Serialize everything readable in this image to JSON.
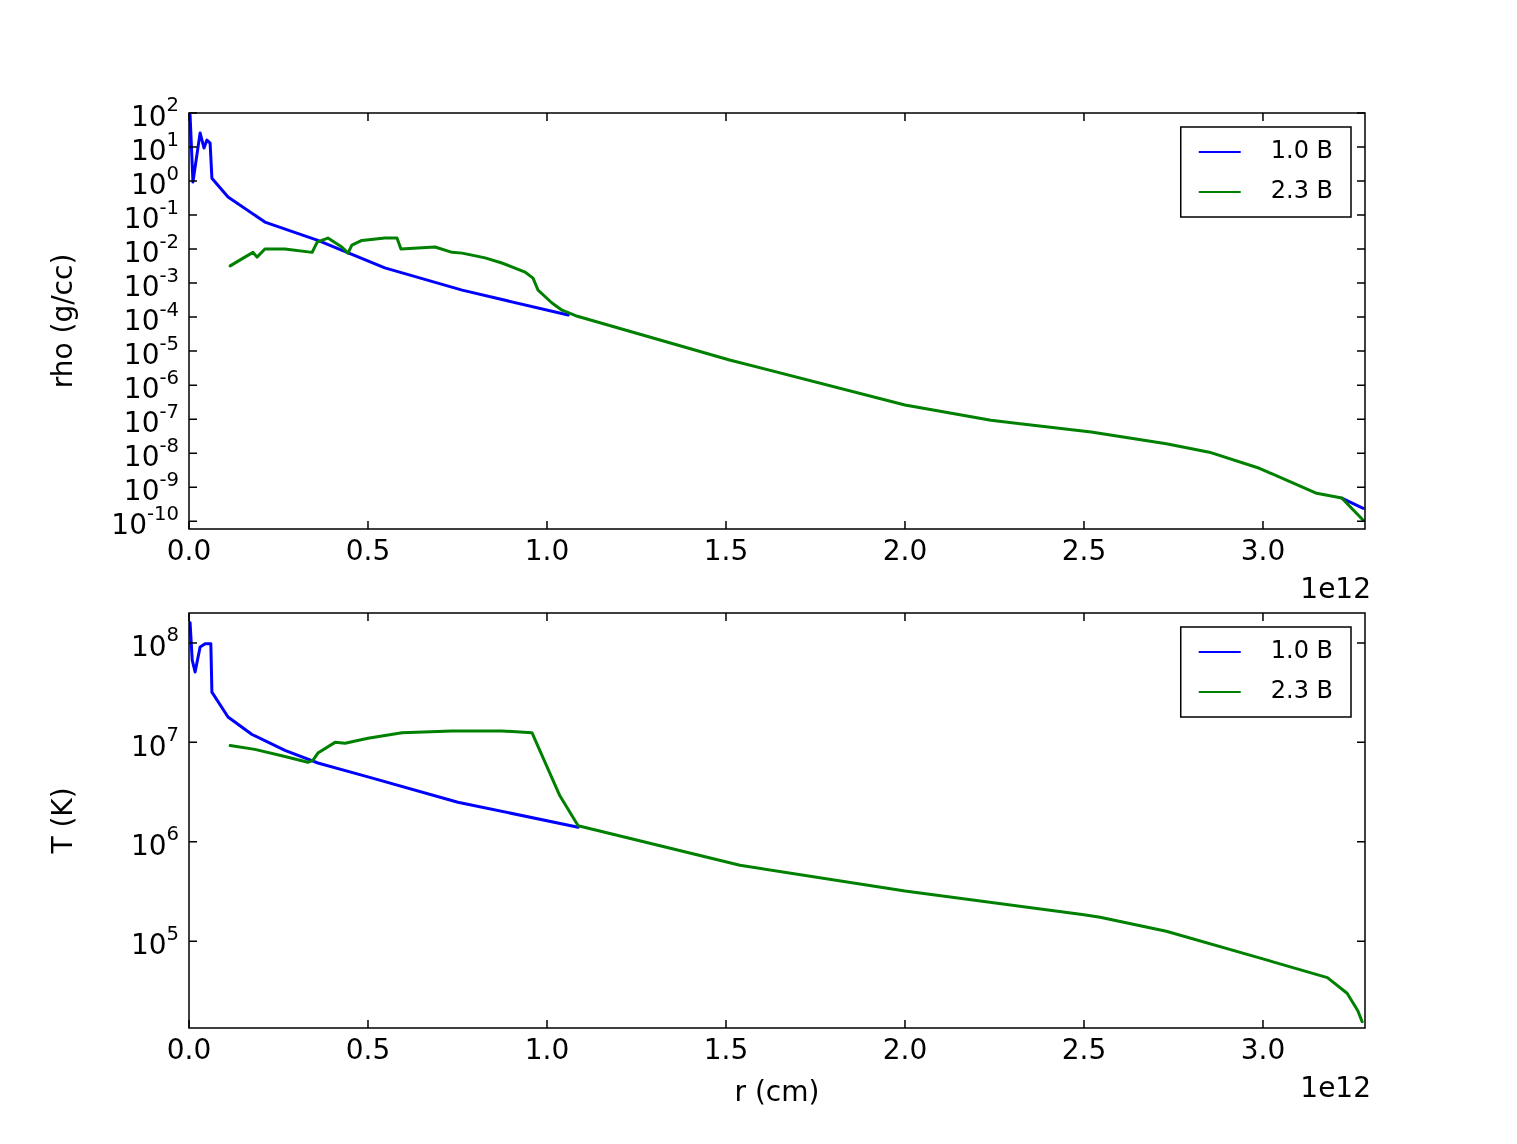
{
  "chart_data": [
    {
      "type": "line",
      "ylabel": "rho (g/cc)",
      "annotations": [
        "1e12"
      ],
      "log": "y",
      "legend": "top right",
      "xlim": [
        0,
        3.285
      ],
      "ylim": [
        5.9e-11,
        100
      ],
      "xticks": [
        {
          "value": 0,
          "label": "0.0"
        },
        0.5,
        {
          "value": 1,
          "label": "1.0"
        },
        1.5,
        {
          "value": 2,
          "label": "2.0"
        },
        2.5,
        {
          "value": 3,
          "label": "3.0"
        }
      ],
      "yticks": [
        {
          "value": 1e-10,
          "label": "10$^{-10}$"
        },
        {
          "value": 1e-09,
          "label": "10$^{-9}$"
        },
        {
          "value": 1e-08,
          "label": "10$^{-8}$"
        },
        {
          "value": 1e-07,
          "label": "10$^{-7}$"
        },
        {
          "value": 1e-06,
          "label": "10$^{-6}$"
        },
        {
          "value": 1e-05,
          "label": "10$^{-5}$"
        },
        {
          "value": 0.0001,
          "label": "10$^{-4}$"
        },
        {
          "value": 0.001,
          "label": "10$^{-3}$"
        },
        {
          "value": 0.01,
          "label": "10$^{-2}$"
        },
        {
          "value": 0.1,
          "label": "10$^{-1}$"
        },
        {
          "value": 1,
          "label": "10$^{0}$"
        },
        {
          "value": 10,
          "label": "10$^{1}$"
        },
        {
          "value": 100,
          "label": "10$^{2}$"
        }
      ],
      "series": [
        {
          "name": "1.0 B",
          "color": "#0000ff",
          "x": [
            0.003,
            0.011,
            0.031,
            0.042,
            0.05,
            0.059,
            0.064,
            0.109,
            0.212,
            0.36,
            0.547,
            0.763,
            1.059,
            3.15,
            3.22,
            3.28
          ],
          "values": [
            87,
            0.93,
            26,
            9.3,
            16,
            13,
            1.2,
            0.34,
            0.062,
            0.018,
            0.0028,
            0.00062,
            0.000115,
            null,
            4.8e-10,
            2.4e-10
          ]
        },
        {
          "name": "2.3 B",
          "color": "#008000",
          "x": [
            0.115,
            0.156,
            0.179,
            0.19,
            0.212,
            0.268,
            0.344,
            0.358,
            0.388,
            0.427,
            0.444,
            0.455,
            0.483,
            0.547,
            0.581,
            0.592,
            0.687,
            0.735,
            0.763,
            0.827,
            0.874,
            0.939,
            0.961,
            0.975,
            1.014,
            1.042,
            1.08,
            1.51,
            2.0,
            2.24,
            2.52,
            2.73,
            2.85,
            2.99,
            3.15,
            3.22,
            3.28
          ],
          "values": [
            0.0032,
            0.0058,
            0.008,
            0.0058,
            0.01,
            0.01,
            0.008,
            0.016,
            0.021,
            0.0115,
            0.0076,
            0.013,
            0.018,
            0.021,
            0.021,
            0.01,
            0.0115,
            0.008,
            0.0076,
            0.0055,
            0.0039,
            0.0021,
            0.0014,
            0.00062,
            0.00026,
            0.00016,
            0.00011,
            5.5e-06,
            2.6e-07,
            9.3e-08,
            4.2e-08,
            1.9e-08,
            1.07e-08,
            3.6e-09,
            6.6e-10,
            4.8e-10,
            1.07e-10
          ]
        }
      ]
    },
    {
      "type": "line",
      "xlabel": "r (cm)",
      "ylabel": "T (K)",
      "annotations": [
        "1e12"
      ],
      "log": "y",
      "legend": "top right",
      "xlim": [
        0,
        3.285
      ],
      "ylim": [
        13400,
        200000000
      ],
      "xticks": [
        {
          "value": 0,
          "label": "0.0"
        },
        0.5,
        {
          "value": 1,
          "label": "1.0"
        },
        1.5,
        {
          "value": 2,
          "label": "2.0"
        },
        2.5,
        {
          "value": 3,
          "label": "3.0"
        }
      ],
      "yticks": [
        {
          "value": 100000,
          "label": "10$^{5}$"
        },
        {
          "value": 1000000,
          "label": "10$^{6}$"
        },
        {
          "value": 10000000,
          "label": "10$^{7}$"
        },
        {
          "value": 100000000,
          "label": "10$^{8}$"
        }
      ],
      "series": [
        {
          "name": "1.0 B",
          "color": "#0000ff",
          "x": [
            0.003,
            0.009,
            0.017,
            0.031,
            0.045,
            0.061,
            0.064,
            0.109,
            0.176,
            0.268,
            0.36,
            0.5,
            0.751,
            1.087
          ],
          "values": [
            160000000,
            67000000,
            51000000,
            91000000,
            98000000,
            98000000,
            32000000,
            18000000,
            12000000,
            8300000,
            6200000,
            4500000,
            2500000,
            1400000
          ]
        },
        {
          "name": "2.3 B",
          "color": "#008000",
          "x": [
            0.115,
            0.184,
            0.268,
            0.332,
            0.346,
            0.36,
            0.408,
            0.436,
            0.5,
            0.595,
            0.735,
            0.874,
            0.958,
            1.036,
            1.087,
            1.539,
            2.0,
            2.5,
            2.545,
            2.73,
            2.99,
            3.18,
            3.235,
            3.265,
            3.277
          ],
          "values": [
            9300000,
            8500000,
            7200000,
            6300000,
            6600000,
            7800000,
            10000000,
            9800000,
            11000000,
            12500000,
            13000000,
            13000000,
            12500000,
            2900000,
            1450000,
            580000,
            320000,
            185000,
            174000,
            126000,
            68000,
            43000,
            30000,
            20000,
            15500
          ]
        }
      ]
    }
  ]
}
